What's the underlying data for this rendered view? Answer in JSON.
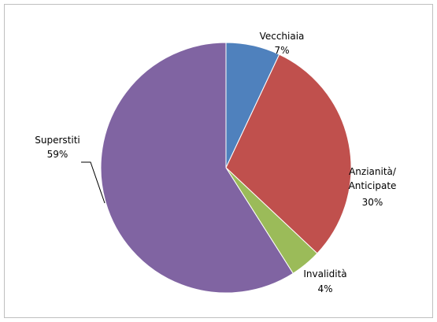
{
  "chart_data": {
    "type": "pie",
    "categories": [
      "Vecchiaia",
      "Anzianità/ Anticipate",
      "Invalidità",
      "Superstiti"
    ],
    "values": [
      7,
      30,
      4,
      59
    ],
    "value_labels": [
      "7%",
      "30%",
      "4%",
      "59%"
    ],
    "colors": [
      "#4f81bd",
      "#c0504d",
      "#9bbb59",
      "#8064a2"
    ]
  }
}
